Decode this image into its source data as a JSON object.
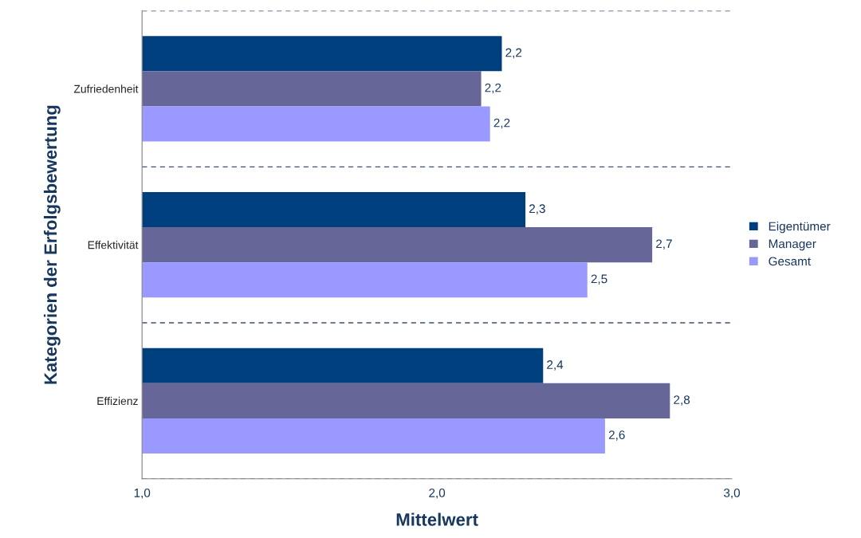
{
  "chart_data": {
    "type": "bar",
    "orientation": "horizontal",
    "xlabel": "Mittelwert",
    "ylabel": "Kategorien der Erfolgsbewertung",
    "categories": [
      "Zufriedenheit",
      "Effektivität",
      "Effizienz"
    ],
    "series": [
      {
        "name": "Eigentümer",
        "color": "#003f7d",
        "values": [
          2.22,
          2.3,
          2.36
        ],
        "value_labels": [
          "2,2",
          "2,3",
          "2,4"
        ]
      },
      {
        "name": "Manager",
        "color": "#666699",
        "values": [
          2.15,
          2.73,
          2.79
        ],
        "value_labels": [
          "2,2",
          "2,7",
          "2,8"
        ]
      },
      {
        "name": "Gesamt",
        "color": "#9999ff",
        "values": [
          2.18,
          2.51,
          2.57
        ],
        "value_labels": [
          "2,2",
          "2,5",
          "2,6"
        ]
      }
    ],
    "xlim": [
      1.0,
      3.0
    ],
    "xticks": [
      {
        "value": 1.0,
        "label": "1,0"
      },
      {
        "value": 2.0,
        "label": "2,0"
      },
      {
        "value": 3.0,
        "label": "3,0"
      }
    ],
    "grid": "y",
    "legend": "right"
  }
}
